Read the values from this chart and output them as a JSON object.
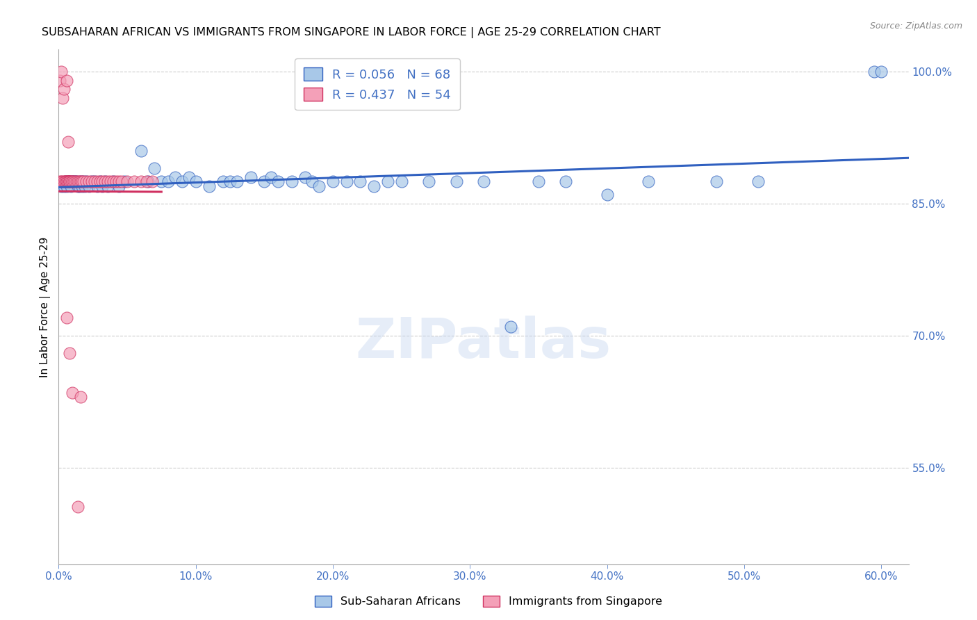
{
  "title": "SUBSAHARAN AFRICAN VS IMMIGRANTS FROM SINGAPORE IN LABOR FORCE | AGE 25-29 CORRELATION CHART",
  "source": "Source: ZipAtlas.com",
  "xlabel_ticks": [
    "0.0%",
    "10.0%",
    "20.0%",
    "30.0%",
    "40.0%",
    "50.0%",
    "60.0%"
  ],
  "xlabel_vals": [
    0.0,
    0.1,
    0.2,
    0.3,
    0.4,
    0.5,
    0.6
  ],
  "ylabel_right_ticks": [
    "100.0%",
    "85.0%",
    "70.0%",
    "55.0%"
  ],
  "ylabel_right_vals": [
    1.0,
    0.85,
    0.7,
    0.55
  ],
  "ylabel_label": "In Labor Force | Age 25-29",
  "xmin": 0.0,
  "xmax": 0.62,
  "ymin": 0.44,
  "ymax": 1.025,
  "blue_R": 0.056,
  "blue_N": 68,
  "pink_R": 0.437,
  "pink_N": 54,
  "legend_entries": [
    "Sub-Saharan Africans",
    "Immigrants from Singapore"
  ],
  "blue_color": "#a8c8e8",
  "pink_color": "#f4a0b8",
  "blue_line_color": "#3060c0",
  "pink_line_color": "#d03060",
  "watermark": "ZIPatlas",
  "blue_scatter_x": [
    0.002,
    0.004,
    0.005,
    0.006,
    0.007,
    0.008,
    0.009,
    0.01,
    0.011,
    0.012,
    0.013,
    0.014,
    0.015,
    0.016,
    0.017,
    0.018,
    0.019,
    0.02,
    0.022,
    0.024,
    0.026,
    0.028,
    0.03,
    0.032,
    0.034,
    0.036,
    0.04,
    0.044,
    0.048,
    0.06,
    0.065,
    0.07,
    0.075,
    0.08,
    0.085,
    0.09,
    0.095,
    0.1,
    0.11,
    0.12,
    0.125,
    0.13,
    0.14,
    0.15,
    0.155,
    0.16,
    0.17,
    0.18,
    0.185,
    0.19,
    0.2,
    0.21,
    0.22,
    0.23,
    0.24,
    0.25,
    0.27,
    0.29,
    0.31,
    0.35,
    0.37,
    0.4,
    0.43,
    0.48,
    0.51,
    0.595,
    0.6,
    0.33
  ],
  "blue_scatter_y": [
    0.87,
    0.87,
    0.875,
    0.87,
    0.875,
    0.875,
    0.87,
    0.875,
    0.875,
    0.875,
    0.875,
    0.87,
    0.87,
    0.875,
    0.87,
    0.875,
    0.87,
    0.875,
    0.87,
    0.875,
    0.875,
    0.87,
    0.875,
    0.87,
    0.875,
    0.87,
    0.875,
    0.87,
    0.875,
    0.91,
    0.875,
    0.89,
    0.875,
    0.875,
    0.88,
    0.875,
    0.88,
    0.875,
    0.87,
    0.875,
    0.875,
    0.875,
    0.88,
    0.875,
    0.88,
    0.875,
    0.875,
    0.88,
    0.875,
    0.87,
    0.875,
    0.875,
    0.875,
    0.87,
    0.875,
    0.875,
    0.875,
    0.875,
    0.875,
    0.875,
    0.875,
    0.86,
    0.875,
    0.875,
    0.875,
    1.0,
    1.0,
    0.71
  ],
  "pink_scatter_x": [
    0.001,
    0.001,
    0.002,
    0.002,
    0.003,
    0.003,
    0.004,
    0.004,
    0.005,
    0.005,
    0.006,
    0.006,
    0.006,
    0.007,
    0.007,
    0.007,
    0.008,
    0.008,
    0.008,
    0.009,
    0.01,
    0.01,
    0.011,
    0.012,
    0.013,
    0.014,
    0.015,
    0.016,
    0.017,
    0.018,
    0.02,
    0.022,
    0.024,
    0.026,
    0.028,
    0.03,
    0.032,
    0.034,
    0.036,
    0.038,
    0.04,
    0.042,
    0.044,
    0.046,
    0.05,
    0.055,
    0.06,
    0.064,
    0.068,
    0.006,
    0.008,
    0.01,
    0.014,
    0.016
  ],
  "pink_scatter_y": [
    0.875,
    0.99,
    1.0,
    0.875,
    0.875,
    0.97,
    0.875,
    0.98,
    0.875,
    0.875,
    0.875,
    0.875,
    0.99,
    0.875,
    0.875,
    0.92,
    0.875,
    0.875,
    0.875,
    0.875,
    0.875,
    0.875,
    0.875,
    0.875,
    0.875,
    0.875,
    0.875,
    0.875,
    0.875,
    0.875,
    0.875,
    0.875,
    0.875,
    0.875,
    0.875,
    0.875,
    0.875,
    0.875,
    0.875,
    0.875,
    0.875,
    0.875,
    0.875,
    0.875,
    0.875,
    0.875,
    0.875,
    0.875,
    0.875,
    0.72,
    0.68,
    0.635,
    0.505,
    0.63
  ]
}
